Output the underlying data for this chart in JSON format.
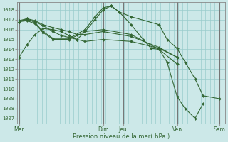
{
  "background_color": "#cce8e8",
  "grid_color": "#99cccc",
  "line_color": "#336633",
  "marker_color": "#336633",
  "xlabel": "Pression niveau de la mer( hPa )",
  "tick_color": "#336633",
  "ylim": [
    1006.5,
    1018.8
  ],
  "yticks": [
    1007,
    1008,
    1009,
    1010,
    1011,
    1012,
    1013,
    1014,
    1015,
    1016,
    1017,
    1018
  ],
  "xtick_labels": [
    "Mer",
    "Dim",
    "Jeu",
    "Ven",
    "Sam"
  ],
  "xtick_positions": [
    0.0,
    0.42,
    0.52,
    0.79,
    1.0
  ],
  "vline_positions": [
    0.0,
    0.42,
    0.52,
    0.79,
    1.0
  ],
  "series": [
    {
      "x": [
        0.0,
        0.04,
        0.08,
        0.12,
        0.17,
        0.21,
        0.25,
        0.29,
        0.33,
        0.42,
        0.56,
        0.7,
        0.79
      ],
      "y": [
        1013.2,
        1014.5,
        1015.5,
        1016.1,
        1016.0,
        1015.8,
        1015.4,
        1015.0,
        1015.8,
        1016.0,
        1015.5,
        1014.0,
        1012.5
      ]
    },
    {
      "x": [
        0.0,
        0.04,
        0.08,
        0.12,
        0.17,
        0.21,
        0.25,
        0.29,
        0.33,
        0.42,
        0.56,
        0.7,
        0.79
      ],
      "y": [
        1016.8,
        1017.1,
        1016.9,
        1016.5,
        1016.2,
        1016.0,
        1015.8,
        1015.5,
        1015.5,
        1015.8,
        1015.3,
        1014.2,
        1013.2
      ]
    },
    {
      "x": [
        0.0,
        0.04,
        0.08,
        0.12,
        0.17,
        0.21,
        0.25,
        0.29,
        0.33,
        0.42,
        0.56,
        0.7,
        0.79
      ],
      "y": [
        1016.8,
        1017.0,
        1016.8,
        1016.4,
        1015.8,
        1015.4,
        1015.2,
        1015.0,
        1014.8,
        1015.0,
        1014.8,
        1014.1,
        1013.2
      ]
    },
    {
      "x": [
        0.0,
        0.04,
        0.08,
        0.12,
        0.17,
        0.25,
        0.33,
        0.38,
        0.42,
        0.46,
        0.5,
        0.56,
        0.7,
        0.74,
        0.79,
        0.83,
        0.88,
        0.92,
        1.0
      ],
      "y": [
        1016.9,
        1017.1,
        1016.7,
        1015.8,
        1015.1,
        1015.1,
        1016.0,
        1017.3,
        1018.2,
        1018.4,
        1017.8,
        1017.3,
        1016.5,
        1015.0,
        1014.1,
        1012.7,
        1011.0,
        1009.3,
        1009.0
      ]
    },
    {
      "x": [
        0.0,
        0.04,
        0.08,
        0.12,
        0.17,
        0.25,
        0.33,
        0.38,
        0.42,
        0.46,
        0.5,
        0.56,
        0.62,
        0.66,
        0.7,
        0.74,
        0.79,
        0.83,
        0.88,
        0.92
      ],
      "y": [
        1016.8,
        1016.9,
        1016.6,
        1015.7,
        1015.0,
        1015.0,
        1015.8,
        1017.0,
        1018.0,
        1018.4,
        1017.8,
        1016.5,
        1015.0,
        1014.1,
        1014.0,
        1012.7,
        1009.2,
        1008.0,
        1007.0,
        1008.5
      ]
    }
  ]
}
